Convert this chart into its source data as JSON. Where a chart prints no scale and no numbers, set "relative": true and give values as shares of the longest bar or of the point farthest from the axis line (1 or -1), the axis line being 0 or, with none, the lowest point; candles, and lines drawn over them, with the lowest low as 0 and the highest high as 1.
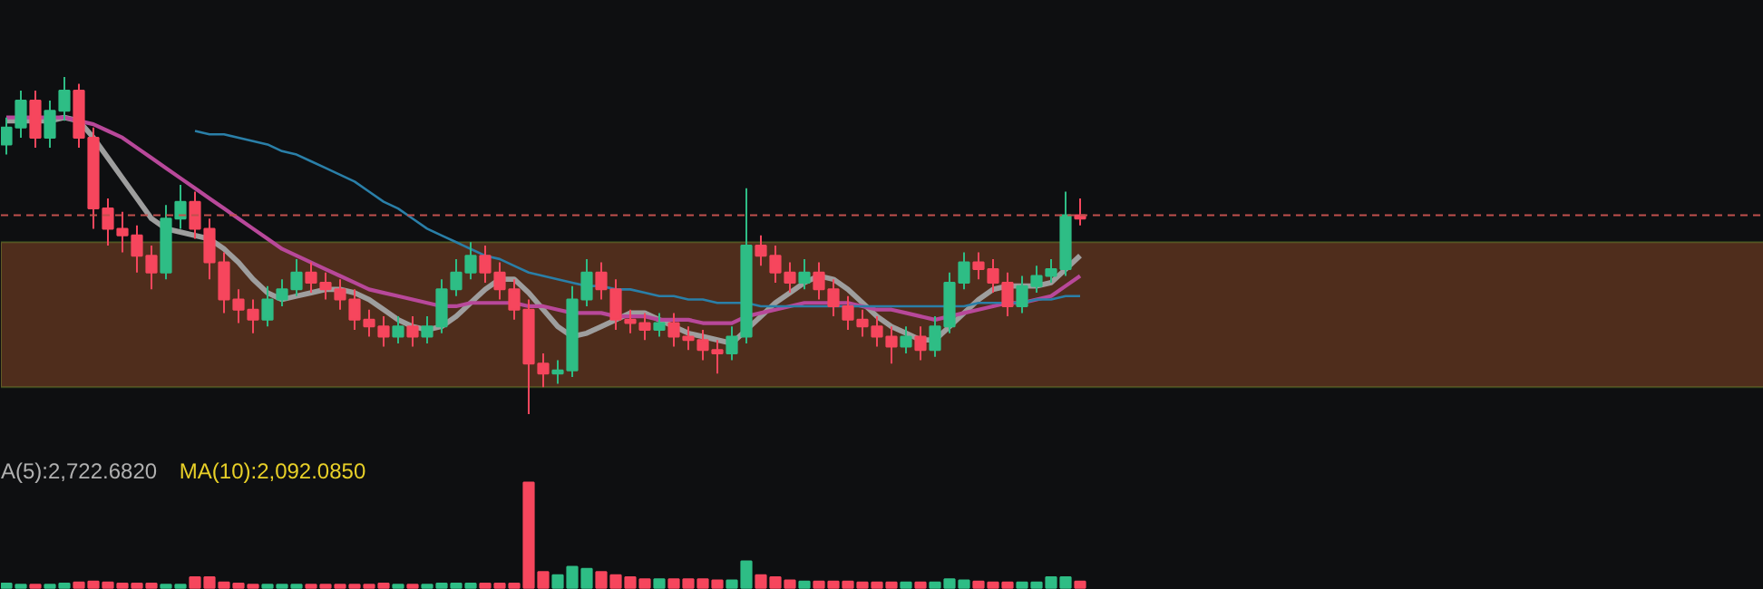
{
  "chart_data": [
    {
      "type": "candlestick",
      "relative": true,
      "categories": [
        null,
        null,
        null,
        null,
        null,
        null,
        null,
        null,
        null,
        null,
        null,
        null,
        null,
        null,
        null,
        null,
        null,
        null,
        null,
        null,
        null,
        null,
        null,
        null,
        null,
        null,
        null,
        null,
        null,
        null,
        null,
        null,
        null,
        null,
        null,
        null,
        null,
        null,
        null,
        null,
        null,
        null,
        null,
        null,
        null,
        null,
        null,
        null,
        null,
        null,
        null,
        null,
        null,
        null,
        null,
        null,
        null,
        null,
        null,
        null,
        null,
        null,
        null,
        null,
        null,
        null,
        null,
        null,
        null,
        null,
        null,
        null,
        null,
        null,
        null
      ],
      "ohlc": [
        [
          0.8,
          0.88,
          0.77,
          0.85
        ],
        [
          0.85,
          0.96,
          0.82,
          0.93
        ],
        [
          0.93,
          0.96,
          0.79,
          0.82
        ],
        [
          0.82,
          0.93,
          0.79,
          0.9
        ],
        [
          0.9,
          1.0,
          0.87,
          0.96
        ],
        [
          0.96,
          0.98,
          0.79,
          0.82
        ],
        [
          0.82,
          0.85,
          0.55,
          0.61
        ],
        [
          0.61,
          0.64,
          0.5,
          0.55
        ],
        [
          0.55,
          0.6,
          0.48,
          0.53
        ],
        [
          0.53,
          0.56,
          0.42,
          0.47
        ],
        [
          0.47,
          0.5,
          0.37,
          0.42
        ],
        [
          0.42,
          0.62,
          0.4,
          0.58
        ],
        [
          0.58,
          0.68,
          0.55,
          0.63
        ],
        [
          0.63,
          0.66,
          0.52,
          0.55
        ],
        [
          0.55,
          0.58,
          0.4,
          0.45
        ],
        [
          0.45,
          0.48,
          0.3,
          0.34
        ],
        [
          0.34,
          0.37,
          0.27,
          0.31
        ],
        [
          0.31,
          0.34,
          0.24,
          0.28
        ],
        [
          0.28,
          0.38,
          0.26,
          0.34
        ],
        [
          0.34,
          0.4,
          0.32,
          0.37
        ],
        [
          0.37,
          0.46,
          0.35,
          0.42
        ],
        [
          0.42,
          0.45,
          0.36,
          0.39
        ],
        [
          0.39,
          0.42,
          0.34,
          0.37
        ],
        [
          0.37,
          0.4,
          0.31,
          0.34
        ],
        [
          0.34,
          0.37,
          0.25,
          0.28
        ],
        [
          0.28,
          0.31,
          0.23,
          0.26
        ],
        [
          0.26,
          0.29,
          0.2,
          0.23
        ],
        [
          0.23,
          0.29,
          0.21,
          0.26
        ],
        [
          0.26,
          0.29,
          0.2,
          0.23
        ],
        [
          0.23,
          0.29,
          0.21,
          0.26
        ],
        [
          0.26,
          0.4,
          0.24,
          0.37
        ],
        [
          0.37,
          0.46,
          0.35,
          0.42
        ],
        [
          0.42,
          0.51,
          0.4,
          0.47
        ],
        [
          0.47,
          0.5,
          0.39,
          0.42
        ],
        [
          0.42,
          0.45,
          0.34,
          0.37
        ],
        [
          0.37,
          0.4,
          0.28,
          0.31
        ],
        [
          0.31,
          0.34,
          0.0,
          0.15
        ],
        [
          0.15,
          0.18,
          0.08,
          0.12
        ],
        [
          0.12,
          0.16,
          0.09,
          0.13
        ],
        [
          0.13,
          0.38,
          0.11,
          0.34
        ],
        [
          0.34,
          0.46,
          0.32,
          0.42
        ],
        [
          0.42,
          0.45,
          0.34,
          0.37
        ],
        [
          0.37,
          0.4,
          0.25,
          0.28
        ],
        [
          0.28,
          0.31,
          0.24,
          0.27
        ],
        [
          0.27,
          0.3,
          0.22,
          0.25
        ],
        [
          0.25,
          0.3,
          0.23,
          0.27
        ],
        [
          0.27,
          0.3,
          0.2,
          0.23
        ],
        [
          0.23,
          0.26,
          0.19,
          0.22
        ],
        [
          0.22,
          0.25,
          0.16,
          0.19
        ],
        [
          0.19,
          0.22,
          0.12,
          0.18
        ],
        [
          0.18,
          0.26,
          0.16,
          0.23
        ],
        [
          0.23,
          0.67,
          0.21,
          0.5
        ],
        [
          0.5,
          0.53,
          0.44,
          0.47
        ],
        [
          0.47,
          0.5,
          0.39,
          0.42
        ],
        [
          0.42,
          0.45,
          0.36,
          0.39
        ],
        [
          0.39,
          0.46,
          0.37,
          0.42
        ],
        [
          0.42,
          0.45,
          0.34,
          0.37
        ],
        [
          0.37,
          0.4,
          0.29,
          0.32
        ],
        [
          0.32,
          0.35,
          0.25,
          0.28
        ],
        [
          0.28,
          0.31,
          0.23,
          0.26
        ],
        [
          0.26,
          0.29,
          0.2,
          0.23
        ],
        [
          0.23,
          0.26,
          0.15,
          0.2
        ],
        [
          0.2,
          0.26,
          0.18,
          0.23
        ],
        [
          0.23,
          0.26,
          0.16,
          0.19
        ],
        [
          0.19,
          0.29,
          0.17,
          0.26
        ],
        [
          0.26,
          0.42,
          0.24,
          0.39
        ],
        [
          0.39,
          0.48,
          0.37,
          0.45
        ],
        [
          0.45,
          0.48,
          0.4,
          0.43
        ],
        [
          0.43,
          0.46,
          0.36,
          0.39
        ],
        [
          0.39,
          0.42,
          0.29,
          0.32
        ],
        [
          0.32,
          0.41,
          0.3,
          0.38
        ],
        [
          0.38,
          0.44,
          0.36,
          0.41
        ],
        [
          0.41,
          0.46,
          0.39,
          0.43
        ],
        [
          0.43,
          0.66,
          0.41,
          0.59
        ],
        [
          0.59,
          0.64,
          0.56,
          0.58
        ]
      ],
      "series": [
        {
          "type": "line",
          "color": "#9e9e9e",
          "values": [
            0.87,
            0.87,
            0.87,
            0.87,
            0.88,
            0.87,
            0.82,
            0.76,
            0.7,
            0.64,
            0.58,
            0.55,
            0.54,
            0.53,
            0.52,
            0.49,
            0.45,
            0.4,
            0.36,
            0.34,
            0.35,
            0.36,
            0.37,
            0.37,
            0.36,
            0.34,
            0.31,
            0.28,
            0.26,
            0.25,
            0.26,
            0.29,
            0.33,
            0.37,
            0.4,
            0.4,
            0.36,
            0.31,
            0.26,
            0.23,
            0.24,
            0.26,
            0.28,
            0.3,
            0.3,
            0.28,
            0.26,
            0.24,
            0.23,
            0.22,
            0.21,
            0.25,
            0.29,
            0.33,
            0.36,
            0.39,
            0.41,
            0.4,
            0.37,
            0.33,
            0.29,
            0.26,
            0.24,
            0.22,
            0.22,
            0.26,
            0.3,
            0.34,
            0.37,
            0.38,
            0.38,
            0.38,
            0.39,
            0.43,
            0.47
          ]
        },
        {
          "type": "line",
          "color": "#b8489a",
          "values": [
            0.88,
            0.88,
            0.88,
            0.88,
            0.88,
            0.87,
            0.86,
            0.84,
            0.82,
            0.79,
            0.76,
            0.73,
            0.7,
            0.67,
            0.64,
            0.61,
            0.58,
            0.55,
            0.52,
            0.49,
            0.47,
            0.45,
            0.43,
            0.41,
            0.39,
            0.37,
            0.36,
            0.35,
            0.34,
            0.33,
            0.32,
            0.32,
            0.33,
            0.33,
            0.33,
            0.33,
            0.32,
            0.32,
            0.31,
            0.3,
            0.3,
            0.3,
            0.29,
            0.29,
            0.29,
            0.28,
            0.28,
            0.28,
            0.27,
            0.27,
            0.27,
            0.29,
            0.3,
            0.31,
            0.32,
            0.33,
            0.33,
            0.33,
            0.33,
            0.32,
            0.31,
            0.31,
            0.3,
            0.29,
            0.28,
            0.29,
            0.3,
            0.31,
            0.32,
            0.33,
            0.33,
            0.34,
            0.35,
            0.38,
            0.41
          ]
        },
        {
          "type": "line",
          "color": "#2a7fa8",
          "values": [
            null,
            null,
            null,
            null,
            null,
            null,
            null,
            null,
            null,
            null,
            null,
            null,
            null,
            0.84,
            0.83,
            0.83,
            0.82,
            0.81,
            0.8,
            0.78,
            0.77,
            0.75,
            0.73,
            0.71,
            0.69,
            0.66,
            0.63,
            0.61,
            0.58,
            0.55,
            0.53,
            0.51,
            0.49,
            0.47,
            0.46,
            0.44,
            0.42,
            0.41,
            0.4,
            0.39,
            0.38,
            0.38,
            0.37,
            0.37,
            0.36,
            0.35,
            0.35,
            0.34,
            0.34,
            0.33,
            0.33,
            0.33,
            0.32,
            0.32,
            0.32,
            0.32,
            0.32,
            0.32,
            0.32,
            0.32,
            0.32,
            0.32,
            0.32,
            0.32,
            0.32,
            0.32,
            0.32,
            0.33,
            0.33,
            0.33,
            0.33,
            0.34,
            0.34,
            0.35,
            0.35
          ]
        }
      ],
      "ref_lines": [
        {
          "axis": "y",
          "value": 0.59,
          "color": "#c0504d",
          "line_style": "dashed"
        }
      ],
      "bands": [
        {
          "axis": "y",
          "from": 0.08,
          "to": 0.51,
          "color": "#5a321f"
        }
      ]
    },
    {
      "type": "bar",
      "relative": true,
      "categories": [
        null,
        null,
        null,
        null,
        null,
        null,
        null,
        null,
        null,
        null,
        null,
        null,
        null,
        null,
        null,
        null,
        null,
        null,
        null,
        null,
        null,
        null,
        null,
        null,
        null,
        null,
        null,
        null,
        null,
        null,
        null,
        null,
        null,
        null,
        null,
        null,
        null,
        null,
        null,
        null,
        null,
        null,
        null,
        null,
        null,
        null,
        null,
        null,
        null,
        null,
        null,
        null,
        null,
        null,
        null,
        null,
        null,
        null,
        null,
        null,
        null,
        null,
        null,
        null,
        null,
        null,
        null,
        null,
        null,
        null,
        null,
        null,
        null,
        null,
        null
      ],
      "values": [
        0.04,
        0.03,
        0.03,
        0.03,
        0.04,
        0.05,
        0.06,
        0.05,
        0.04,
        0.04,
        0.04,
        0.03,
        0.03,
        0.1,
        0.1,
        0.05,
        0.04,
        0.03,
        0.03,
        0.03,
        0.03,
        0.03,
        0.03,
        0.03,
        0.03,
        0.03,
        0.04,
        0.03,
        0.03,
        0.03,
        0.04,
        0.04,
        0.04,
        0.04,
        0.04,
        0.04,
        1.0,
        0.15,
        0.12,
        0.2,
        0.18,
        0.15,
        0.12,
        0.1,
        0.08,
        0.08,
        0.08,
        0.08,
        0.08,
        0.07,
        0.07,
        0.25,
        0.12,
        0.1,
        0.07,
        0.06,
        0.06,
        0.06,
        0.06,
        0.05,
        0.05,
        0.05,
        0.05,
        0.05,
        0.05,
        0.08,
        0.07,
        0.06,
        0.05,
        0.05,
        0.05,
        0.05,
        0.1,
        0.1,
        0.06
      ],
      "colors": [
        "#2ebd85",
        "#2ebd85",
        "#f6465d",
        "#2ebd85",
        "#2ebd85",
        "#f6465d",
        "#f6465d",
        "#f6465d",
        "#f6465d",
        "#f6465d",
        "#f6465d",
        "#2ebd85",
        "#2ebd85",
        "#f6465d",
        "#f6465d",
        "#f6465d",
        "#f6465d",
        "#f6465d",
        "#2ebd85",
        "#2ebd85",
        "#2ebd85",
        "#f6465d",
        "#f6465d",
        "#f6465d",
        "#f6465d",
        "#f6465d",
        "#f6465d",
        "#2ebd85",
        "#f6465d",
        "#2ebd85",
        "#2ebd85",
        "#2ebd85",
        "#2ebd85",
        "#f6465d",
        "#f6465d",
        "#f6465d",
        "#f6465d",
        "#f6465d",
        "#2ebd85",
        "#2ebd85",
        "#2ebd85",
        "#f6465d",
        "#f6465d",
        "#f6465d",
        "#f6465d",
        "#2ebd85",
        "#f6465d",
        "#f6465d",
        "#f6465d",
        "#f6465d",
        "#2ebd85",
        "#2ebd85",
        "#f6465d",
        "#f6465d",
        "#f6465d",
        "#2ebd85",
        "#f6465d",
        "#f6465d",
        "#f6465d",
        "#f6465d",
        "#f6465d",
        "#f6465d",
        "#2ebd85",
        "#f6465d",
        "#2ebd85",
        "#2ebd85",
        "#2ebd85",
        "#f6465d",
        "#f6465d",
        "#f6465d",
        "#2ebd85",
        "#2ebd85",
        "#2ebd85",
        "#2ebd85",
        "#f6465d"
      ],
      "annotations": [
        "A(5):2,722.6820",
        "MA(10):2,092.0850"
      ]
    }
  ]
}
